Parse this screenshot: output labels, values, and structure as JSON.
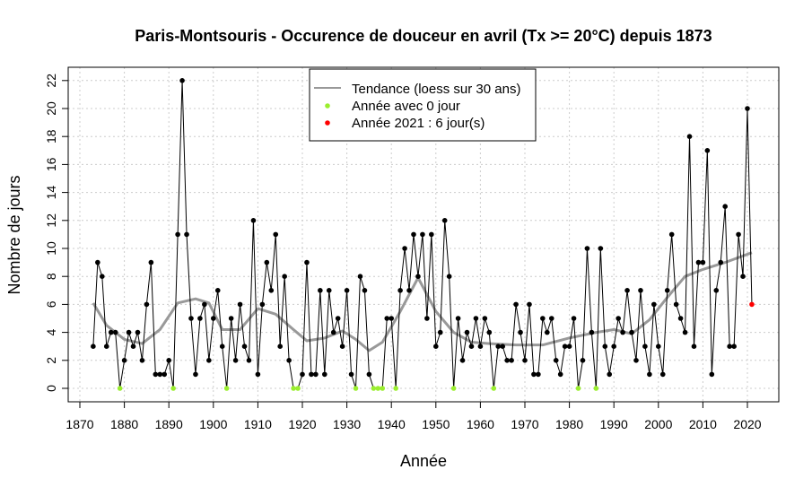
{
  "chart_data": {
    "type": "line",
    "title": "Paris-Montsouris - Occurence de douceur en avril (Tx >= 20°C) depuis 1873",
    "xlabel": "Année",
    "ylabel": "Nombre de jours",
    "xlim": [
      1870,
      2022
    ],
    "ylim": [
      -0.8,
      23.2
    ],
    "xticks": [
      1870,
      1880,
      1890,
      1900,
      1910,
      1920,
      1930,
      1940,
      1950,
      1960,
      1970,
      1980,
      1990,
      2000,
      2010,
      2020
    ],
    "yticks": [
      0,
      2,
      4,
      6,
      8,
      10,
      12,
      14,
      16,
      18,
      20,
      22
    ],
    "grid": true,
    "legend_position": "top-center",
    "legend": [
      {
        "label": "Tendance (loess sur 30 ans)",
        "color": "#999999",
        "kind": "line"
      },
      {
        "label": "Année avec 0 jour",
        "color": "#9AEE2E",
        "kind": "point"
      },
      {
        "label": "Année 2021 : 6 jour(s)",
        "color": "#FF0000",
        "kind": "point"
      }
    ],
    "start_year": 1873,
    "values": [
      3,
      9,
      8,
      3,
      4,
      4,
      0,
      2,
      4,
      3,
      4,
      2,
      6,
      9,
      1,
      1,
      1,
      2,
      0,
      11,
      22,
      11,
      5,
      1,
      5,
      6,
      2,
      5,
      7,
      3,
      0,
      5,
      2,
      6,
      3,
      2,
      12,
      1,
      6,
      9,
      7,
      11,
      3,
      8,
      2,
      0,
      0,
      1,
      9,
      1,
      1,
      7,
      1,
      7,
      4,
      5,
      3,
      7,
      1,
      0,
      8,
      7,
      1,
      0,
      0,
      0,
      5,
      5,
      0,
      7,
      10,
      7,
      11,
      8,
      11,
      5,
      11,
      3,
      4,
      12,
      8,
      0,
      5,
      2,
      4,
      3,
      5,
      3,
      5,
      4,
      0,
      3,
      3,
      2,
      2,
      6,
      4,
      2,
      6,
      1,
      1,
      5,
      4,
      5,
      2,
      1,
      3,
      3,
      5,
      0,
      2,
      10,
      4,
      0,
      10,
      3,
      1,
      3,
      5,
      4,
      7,
      4,
      2,
      7,
      3,
      1,
      6,
      3,
      1,
      7,
      11,
      6,
      5,
      4,
      18,
      3,
      9,
      9,
      17,
      1,
      7,
      9,
      13,
      3,
      3,
      11,
      8,
      20,
      6
    ],
    "trend": {
      "years": [
        1873,
        1876,
        1880,
        1884,
        1888,
        1892,
        1896,
        1899,
        1902,
        1906,
        1910,
        1914,
        1918,
        1921,
        1925,
        1929,
        1932,
        1935,
        1938,
        1942,
        1946,
        1950,
        1954,
        1958,
        1962,
        1968,
        1974,
        1980,
        1986,
        1990,
        1994,
        1998,
        2002,
        2006,
        2010,
        2015,
        2021
      ],
      "values": [
        6.1,
        4.5,
        3.5,
        3.2,
        4.2,
        6.1,
        6.4,
        6.1,
        4.2,
        4.2,
        5.7,
        5.3,
        4.2,
        3.4,
        3.6,
        4.1,
        3.5,
        2.7,
        3.3,
        5.5,
        7.9,
        5.5,
        4.0,
        3.3,
        3.2,
        3.1,
        3.1,
        3.6,
        4.0,
        4.2,
        3.9,
        4.9,
        6.5,
        8.0,
        8.5,
        9.0,
        9.7
      ]
    },
    "highlight_year": 2021,
    "colors": {
      "line": "#000000",
      "zero": "#9AEE2E",
      "highlight": "#FF0000",
      "trend": "#999999"
    }
  }
}
